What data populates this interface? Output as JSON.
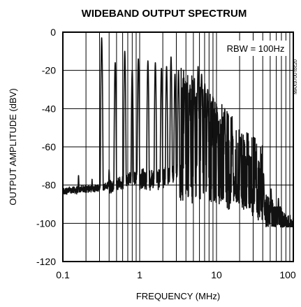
{
  "chart_data": {
    "type": "line",
    "title": "WIDEBAND OUTPUT SPECTRUM",
    "xlabel": "FREQUENCY (MHz)",
    "ylabel": "OUTPUT AMPLITUDE (dBV)",
    "x_scale": "log",
    "xlim": [
      0.1,
      100
    ],
    "ylim": [
      -120,
      0
    ],
    "x_ticks": [
      {
        "value": 0.1,
        "label": "0.1"
      },
      {
        "value": 1,
        "label": "1"
      },
      {
        "value": 10,
        "label": "10"
      },
      {
        "value": 100,
        "label": "100"
      }
    ],
    "y_ticks": [
      {
        "value": 0,
        "label": "0"
      },
      {
        "value": -20,
        "label": "-20"
      },
      {
        "value": -40,
        "label": "-40"
      },
      {
        "value": -60,
        "label": "-60"
      },
      {
        "value": -80,
        "label": "-80"
      },
      {
        "value": -100,
        "label": "-100"
      },
      {
        "value": -120,
        "label": "-120"
      }
    ],
    "grid": true,
    "annotation": "RBW = 100Hz",
    "side_label": "MAX9700 toc20",
    "series": [
      {
        "color": "#111111",
        "peaks": [
          {
            "x": 0.16,
            "y": -75
          },
          {
            "x": 0.24,
            "y": -77
          },
          {
            "x": 0.32,
            "y": -3
          },
          {
            "x": 0.4,
            "y": -72
          },
          {
            "x": 0.48,
            "y": -16
          },
          {
            "x": 0.64,
            "y": -10
          },
          {
            "x": 0.8,
            "y": -20
          },
          {
            "x": 0.96,
            "y": -14
          },
          {
            "x": 1.28,
            "y": -15
          },
          {
            "x": 1.6,
            "y": -16
          },
          {
            "x": 1.92,
            "y": -19
          },
          {
            "x": 2.24,
            "y": -18
          },
          {
            "x": 2.56,
            "y": -13
          },
          {
            "x": 2.88,
            "y": -22
          },
          {
            "x": 3.2,
            "y": -20
          },
          {
            "x": 3.84,
            "y": -27
          },
          {
            "x": 4.48,
            "y": -30
          },
          {
            "x": 5.12,
            "y": -26
          },
          {
            "x": 5.76,
            "y": -18
          },
          {
            "x": 6.4,
            "y": -22
          },
          {
            "x": 7.04,
            "y": -27
          },
          {
            "x": 7.68,
            "y": -30
          },
          {
            "x": 8.96,
            "y": -35
          },
          {
            "x": 10.24,
            "y": -42
          },
          {
            "x": 12.8,
            "y": -40
          },
          {
            "x": 16,
            "y": -52
          },
          {
            "x": 20.48,
            "y": -55
          },
          {
            "x": 25.6,
            "y": -60
          },
          {
            "x": 32,
            "y": -67
          },
          {
            "x": 40.96,
            "y": -74
          },
          {
            "x": 51.2,
            "y": -82
          },
          {
            "x": 64,
            "y": -87
          }
        ]
      }
    ]
  }
}
